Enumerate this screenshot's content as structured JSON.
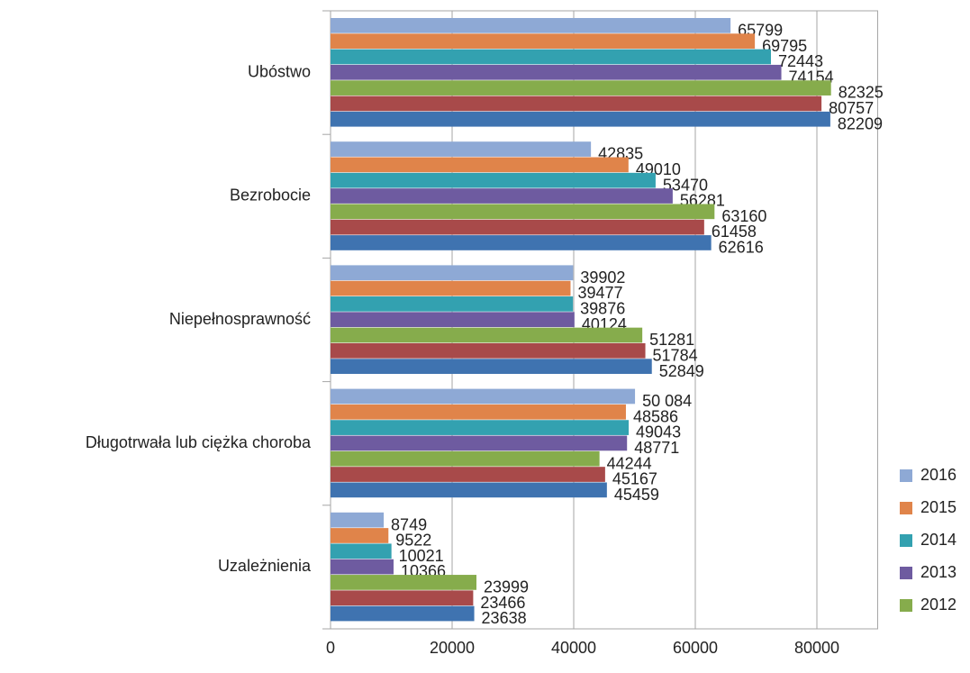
{
  "chart_data": {
    "type": "bar",
    "orientation": "horizontal",
    "categories": [
      "Ubóstwo",
      "Bezrobocie",
      "Niepełnosprawność",
      "Długotrwała lub ciężka choroba",
      "Uzależnienia"
    ],
    "series": [
      {
        "name": "2016",
        "color": "#8ea9d5",
        "values": [
          65799,
          42835,
          39902,
          50084,
          8749
        ],
        "value_labels": [
          "65799",
          "42835",
          "39902",
          "50 084",
          "8749"
        ]
      },
      {
        "name": "2015",
        "color": "#e0844a",
        "values": [
          69795,
          49010,
          39477,
          48586,
          9522
        ]
      },
      {
        "name": "2014",
        "color": "#33a1b0",
        "values": [
          72443,
          53470,
          39876,
          49043,
          10021
        ]
      },
      {
        "name": "2013",
        "color": "#6e5ba0",
        "values": [
          74154,
          56281,
          40124,
          48771,
          10366
        ]
      },
      {
        "name": "2012",
        "color": "#86ac4c",
        "values": [
          82325,
          63160,
          51281,
          44244,
          23999
        ]
      },
      {
        "name": null,
        "color": "#a84a4a",
        "values": [
          80757,
          61458,
          51784,
          45167,
          23466
        ]
      },
      {
        "name": null,
        "color": "#3f73b0",
        "values": [
          82209,
          62616,
          52849,
          45459,
          23638
        ]
      }
    ],
    "xlim": [
      0,
      90000
    ],
    "xticks": [
      0,
      20000,
      40000,
      60000,
      80000
    ],
    "grid": true,
    "legend": "right"
  }
}
